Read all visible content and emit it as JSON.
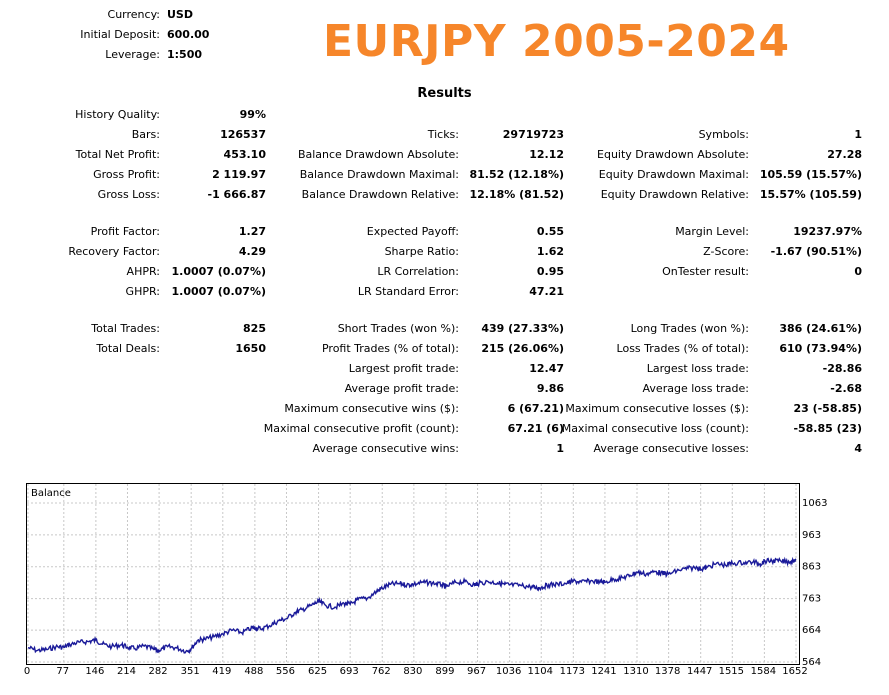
{
  "header": {
    "currency_label": "Currency:",
    "currency_value": "USD",
    "deposit_label": "Initial Deposit:",
    "deposit_value": "600.00",
    "leverage_label": "Leverage:",
    "leverage_value": "1:500"
  },
  "banner": "EURJPY 2005-2024",
  "results_title": "Results",
  "col1": [
    {
      "label": "History Quality:",
      "value": "99%"
    },
    {
      "label": "Bars:",
      "value": "126537"
    },
    {
      "label": "Total Net Profit:",
      "value": "453.10"
    },
    {
      "label": "Gross Profit:",
      "value": "2 119.97"
    },
    {
      "label": "Gross Loss:",
      "value": "-1 666.87"
    },
    {
      "label": "Profit Factor:",
      "value": "1.27"
    },
    {
      "label": "Recovery Factor:",
      "value": "4.29"
    },
    {
      "label": "AHPR:",
      "value": "1.0007 (0.07%)"
    },
    {
      "label": "GHPR:",
      "value": "1.0007 (0.07%)"
    },
    {
      "label": "Total Trades:",
      "value": "825"
    },
    {
      "label": "Total Deals:",
      "value": "1650"
    }
  ],
  "col2": [
    {
      "label": "Ticks:",
      "value": "29719723"
    },
    {
      "label": "Balance Drawdown Absolute:",
      "value": "12.12"
    },
    {
      "label": "Balance Drawdown Maximal:",
      "value": "81.52 (12.18%)"
    },
    {
      "label": "Balance Drawdown Relative:",
      "value": "12.18% (81.52)"
    },
    {
      "label": "Expected Payoff:",
      "value": "0.55"
    },
    {
      "label": "Sharpe Ratio:",
      "value": "1.62"
    },
    {
      "label": "LR Correlation:",
      "value": "0.95"
    },
    {
      "label": "LR Standard Error:",
      "value": "47.21"
    },
    {
      "label": "Short Trades (won %):",
      "value": "439 (27.33%)"
    },
    {
      "label": "Profit Trades (% of total):",
      "value": "215 (26.06%)"
    },
    {
      "label": "Largest profit trade:",
      "value": "12.47"
    },
    {
      "label": "Average profit trade:",
      "value": "9.86"
    },
    {
      "label": "Maximum consecutive wins ($):",
      "value": "6 (67.21)"
    },
    {
      "label": "Maximal consecutive profit (count):",
      "value": "67.21 (6)"
    },
    {
      "label": "Average consecutive wins:",
      "value": "1"
    }
  ],
  "col3": [
    {
      "label": "Symbols:",
      "value": "1"
    },
    {
      "label": "Equity Drawdown Absolute:",
      "value": "27.28"
    },
    {
      "label": "Equity Drawdown Maximal:",
      "value": "105.59 (15.57%)"
    },
    {
      "label": "Equity Drawdown Relative:",
      "value": "15.57% (105.59)"
    },
    {
      "label": "Margin Level:",
      "value": "19237.97%"
    },
    {
      "label": "Z-Score:",
      "value": "-1.67 (90.51%)"
    },
    {
      "label": "OnTester result:",
      "value": "0"
    },
    {
      "label": "Long Trades (won %):",
      "value": "386 (24.61%)"
    },
    {
      "label": "Loss Trades (% of total):",
      "value": "610 (73.94%)"
    },
    {
      "label": "Largest loss trade:",
      "value": "-28.86"
    },
    {
      "label": "Average loss trade:",
      "value": "-2.68"
    },
    {
      "label": "Maximum consecutive losses ($):",
      "value": "23 (-58.85)"
    },
    {
      "label": "Maximal consecutive loss (count):",
      "value": "-58.85 (23)"
    },
    {
      "label": "Average consecutive losses:",
      "value": "4"
    }
  ],
  "chart_data": {
    "type": "line",
    "title": "Balance",
    "line_color": "#1a1a99",
    "x_ticks": [
      "0",
      "77",
      "146",
      "214",
      "282",
      "351",
      "419",
      "488",
      "556",
      "625",
      "693",
      "762",
      "830",
      "899",
      "967",
      "1036",
      "1104",
      "1173",
      "1241",
      "1310",
      "1378",
      "1447",
      "1515",
      "1584",
      "1652"
    ],
    "y_ticks": [
      "1063",
      "963",
      "863",
      "763",
      "664",
      "564"
    ],
    "xlim": [
      0,
      1652
    ],
    "ylim": [
      564,
      1063
    ],
    "grid": true,
    "series": [
      {
        "x": [
          0,
          20,
          40,
          60,
          77,
          90,
          110,
          130,
          146,
          160,
          180,
          200,
          214,
          230,
          250,
          270,
          282,
          300,
          320,
          340,
          351,
          365,
          380,
          400,
          419,
          440,
          460,
          480,
          488,
          500,
          520,
          540,
          556,
          575,
          590,
          610,
          625,
          640,
          660,
          680,
          693,
          710,
          730,
          750,
          762,
          780,
          800,
          815,
          830,
          850,
          870,
          890,
          899,
          920,
          940,
          960,
          967,
          990,
          1010,
          1025,
          1036,
          1060,
          1080,
          1095,
          1104,
          1120,
          1140,
          1160,
          1173,
          1190,
          1210,
          1230,
          1241,
          1260,
          1280,
          1295,
          1310,
          1330,
          1350,
          1365,
          1378,
          1400,
          1420,
          1440,
          1447,
          1460,
          1480,
          1500,
          1515,
          1540,
          1560,
          1575,
          1584,
          1600,
          1620,
          1640,
          1652
        ],
        "y": [
          609,
          600,
          603,
          612,
          610,
          619,
          626,
          628,
          633,
          620,
          612,
          618,
          610,
          606,
          614,
          604,
          600,
          612,
          608,
          598,
          606,
          632,
          636,
          643,
          652,
          664,
          656,
          670,
          672,
          668,
          678,
          694,
          700,
          720,
          728,
          742,
          754,
          742,
          736,
          748,
          745,
          760,
          764,
          786,
          796,
          808,
          810,
          806,
          808,
          814,
          812,
          806,
          800,
          814,
          816,
          806,
          810,
          816,
          812,
          808,
          806,
          804,
          800,
          796,
          798,
          806,
          808,
          812,
          818,
          815,
          818,
          816,
          814,
          824,
          828,
          836,
          846,
          840,
          848,
          842,
          840,
          852,
          858,
          860,
          856,
          860,
          872,
          868,
          874,
          876,
          878,
          872,
          880,
          882,
          880,
          878,
          888
        ]
      }
    ]
  }
}
